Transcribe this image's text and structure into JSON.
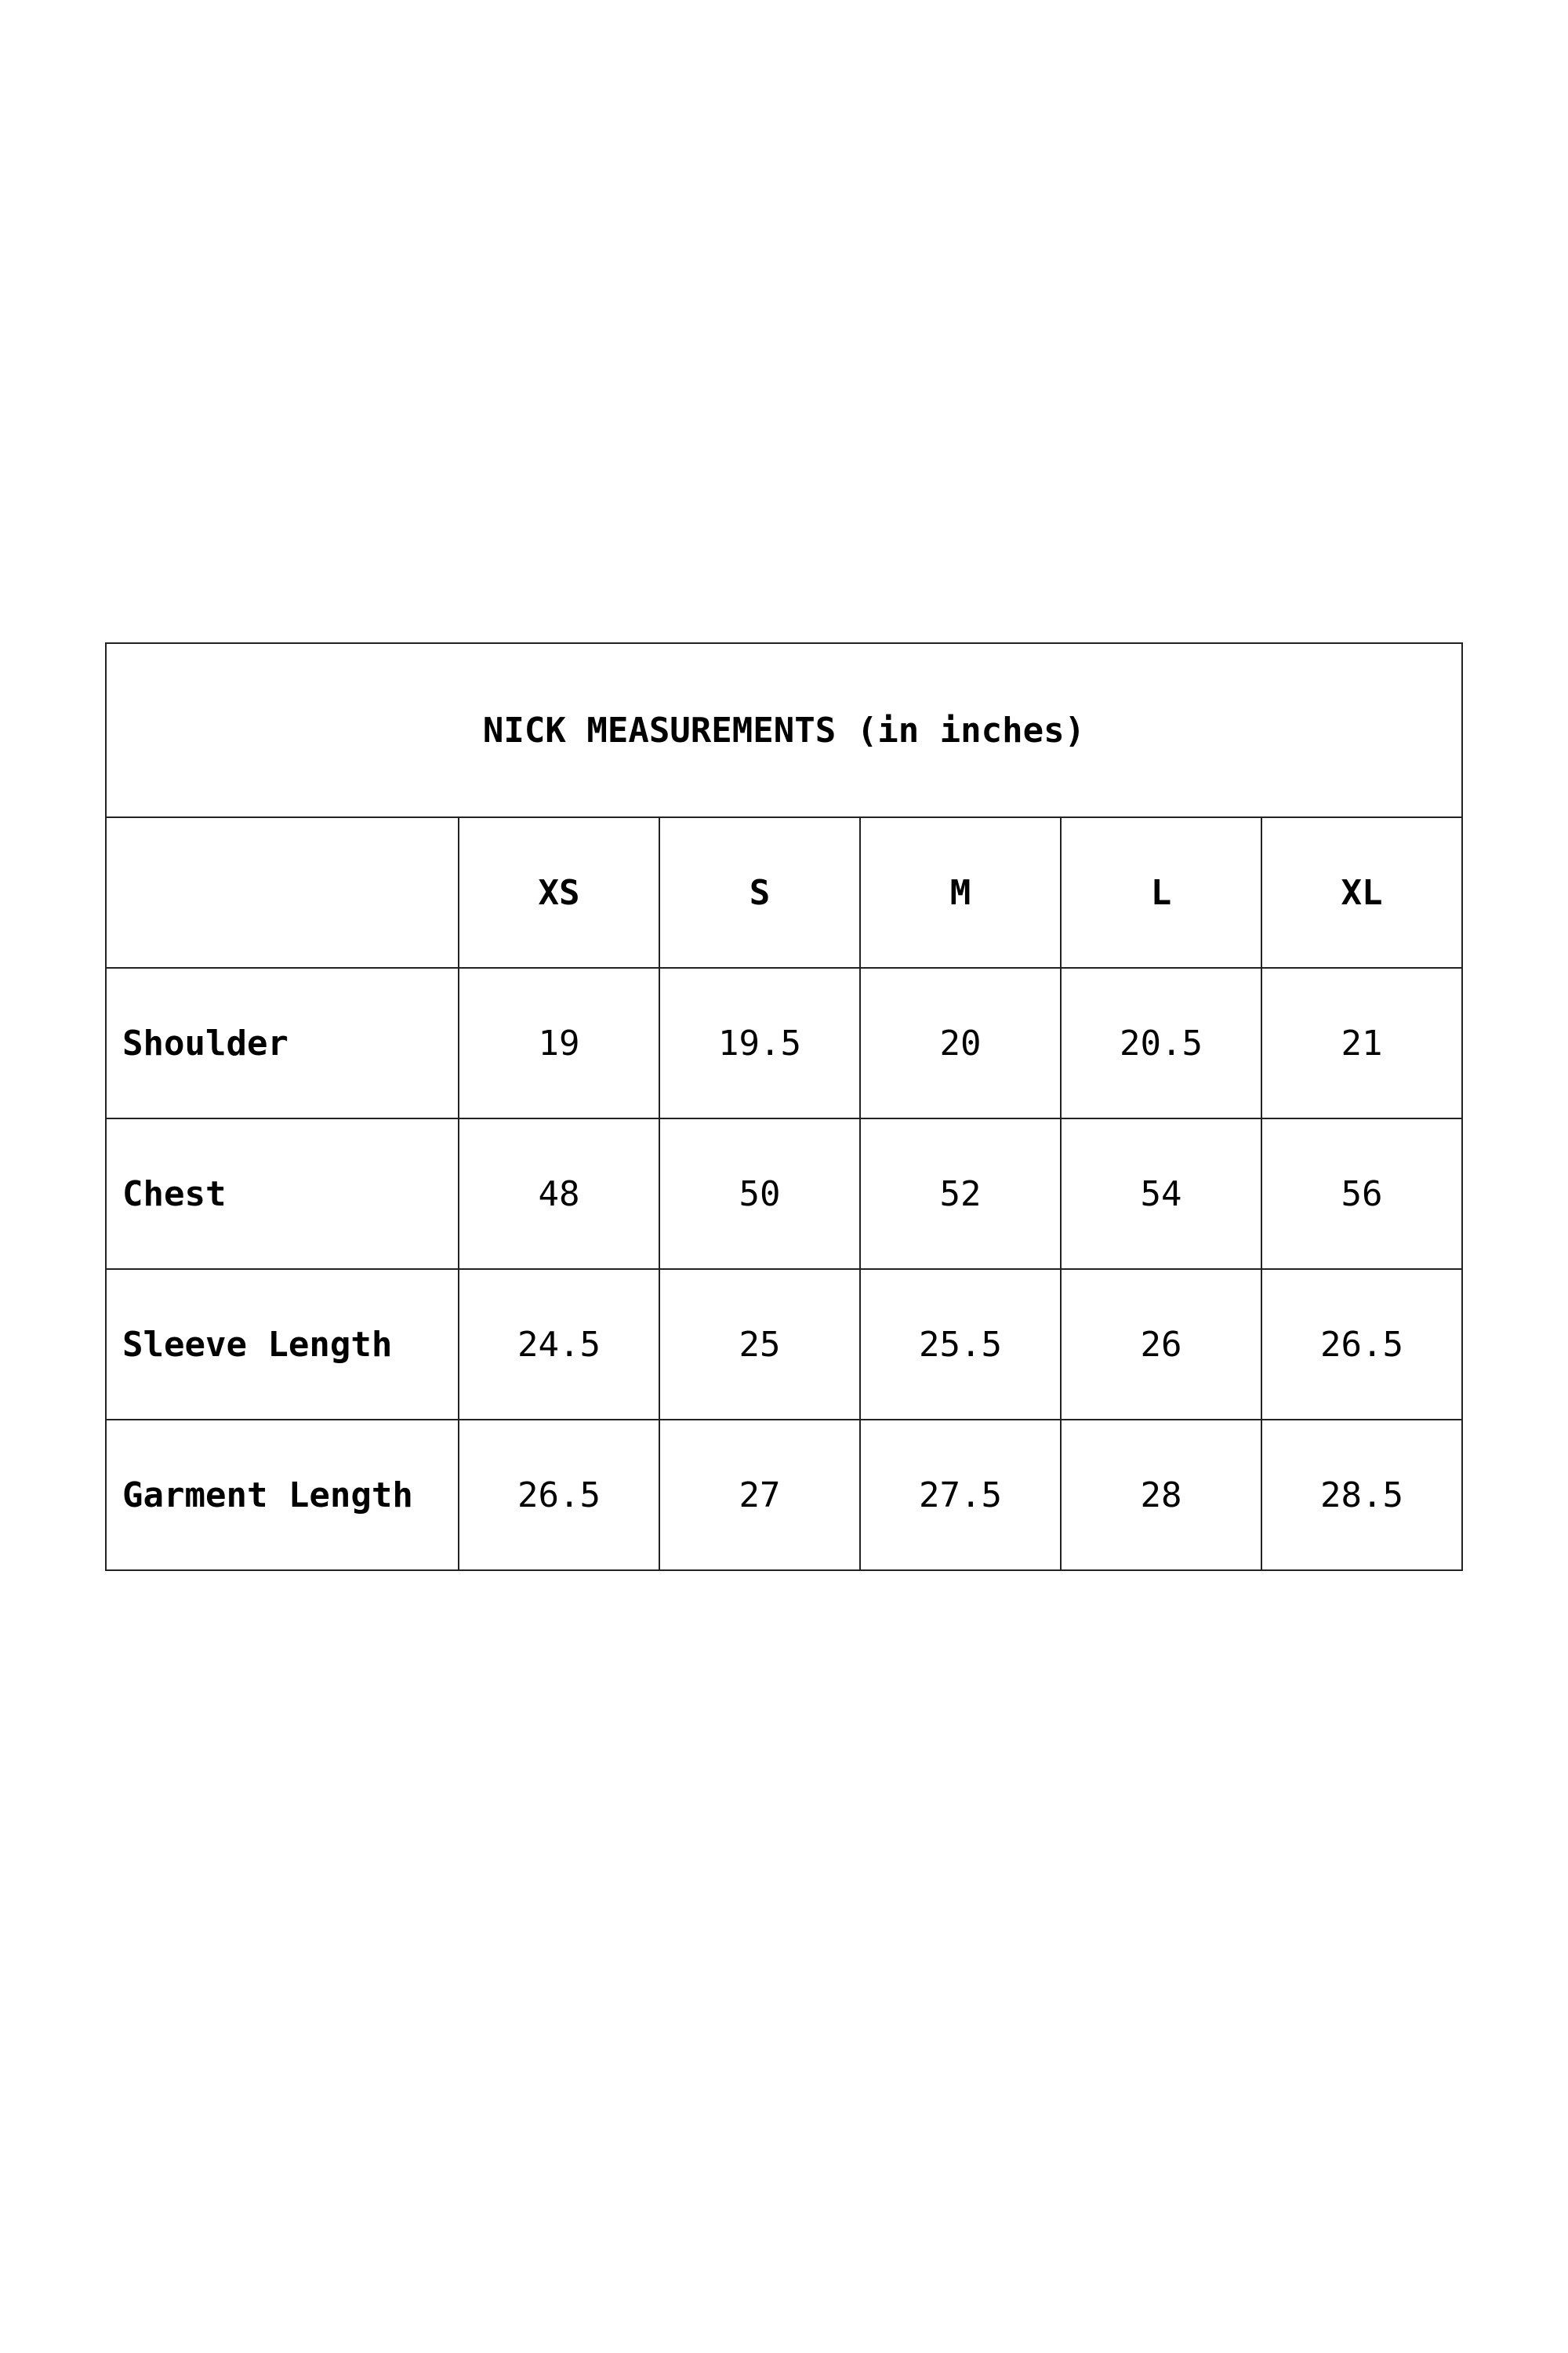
{
  "table": {
    "title": "NICK MEASUREMENTS (in inches)",
    "corner": "",
    "sizes": [
      "XS",
      "S",
      "M",
      "L",
      "XL"
    ],
    "rows": [
      {
        "label": "Shoulder",
        "values": [
          "19",
          "19.5",
          "20",
          "20.5",
          "21"
        ]
      },
      {
        "label": "Chest",
        "values": [
          "48",
          "50",
          "52",
          "54",
          "56"
        ]
      },
      {
        "label": "Sleeve Length",
        "values": [
          "24.5",
          "25",
          "25.5",
          "26",
          "26.5"
        ]
      },
      {
        "label": "Garment Length",
        "values": [
          "26.5",
          "27",
          "27.5",
          "28",
          "28.5"
        ]
      }
    ]
  }
}
